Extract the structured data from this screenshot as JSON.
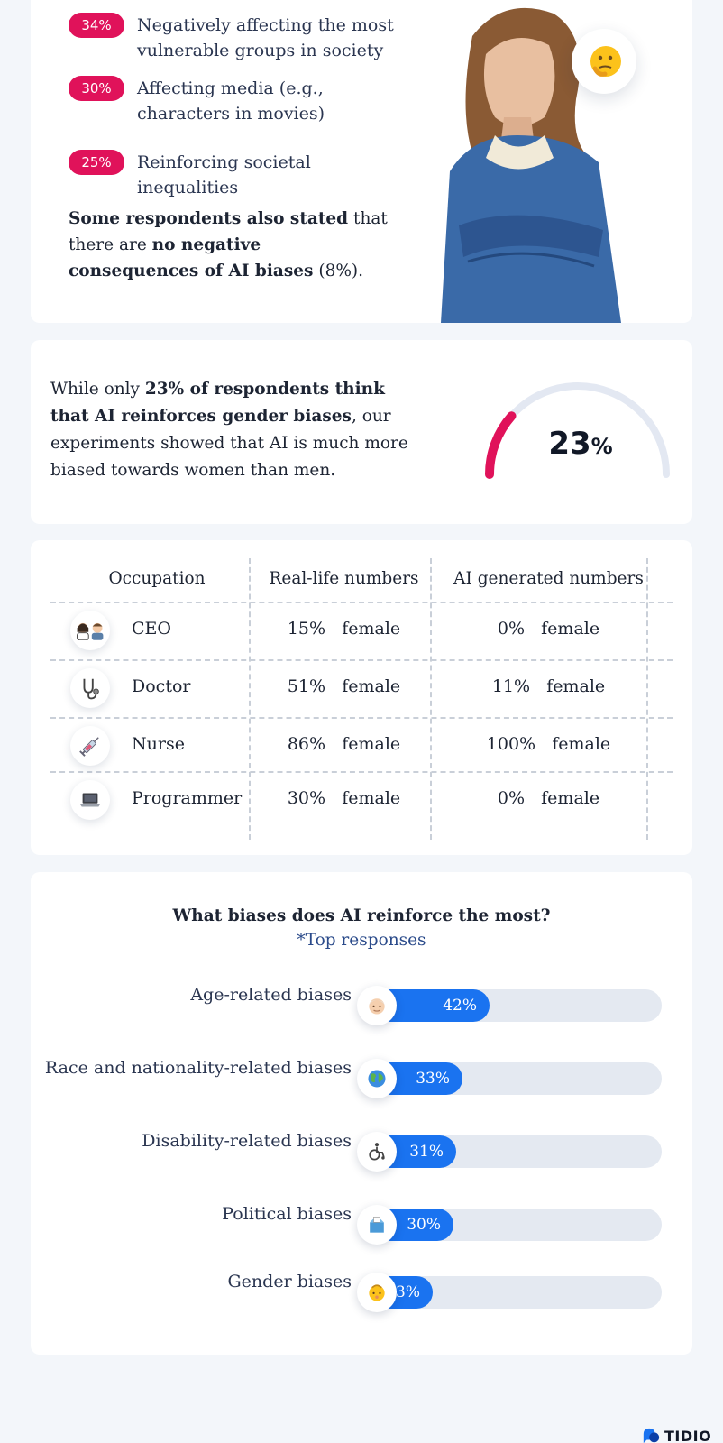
{
  "consequences": {
    "items": [
      {
        "percent": "34%",
        "text": "Negatively affecting the most vulnerable groups in society"
      },
      {
        "percent": "30%",
        "text": "Affecting media (e.g., characters in movies)"
      },
      {
        "percent": "25%",
        "text": "Reinforcing societal inequalities"
      }
    ],
    "note": {
      "part1": "Some respondents also stated",
      "part2": " that there are ",
      "part3": "no negative consequences of AI biases",
      "part4": " (8%)."
    },
    "emoji_icon": "thinking-face-icon"
  },
  "gender_gauge": {
    "text": {
      "part1": "While only ",
      "part2": "23% of respondents think that AI reinforces gender biases",
      "part3": ", our experiments showed that AI is much more biased towards women than men."
    },
    "value": "23",
    "unit": "%",
    "fraction": 0.23,
    "track_color": "#e3e8f2",
    "fill_color": "#e0125a"
  },
  "occupation_table": {
    "headers": [
      "Occupation",
      "Real-life numbers",
      "AI generated numbers"
    ],
    "rows": [
      {
        "icon": "ceo-people-icon",
        "occupation": "CEO",
        "real": "15%   female",
        "ai": "0%   female"
      },
      {
        "icon": "stethoscope-icon",
        "occupation": "Doctor",
        "real": "51%   female",
        "ai": "11%   female"
      },
      {
        "icon": "syringe-icon",
        "occupation": "Nurse",
        "real": "86%   female",
        "ai": "100%   female"
      },
      {
        "icon": "laptop-icon",
        "occupation": "Programmer",
        "real": "30%   female",
        "ai": "0%   female"
      }
    ]
  },
  "chart_data": {
    "type": "bar",
    "title": "What biases does AI reinforce the most?",
    "subtitle": "*Top responses",
    "categories": [
      "Age-related biases",
      "Race and nationality-related biases",
      "Disability-related biases",
      "Political biases",
      "Gender biases"
    ],
    "values": [
      42,
      33,
      31,
      30,
      23
    ],
    "value_labels": [
      "42%",
      "33%",
      "31%",
      "30%",
      "23%"
    ],
    "icons": [
      "old-man-icon",
      "globe-icon",
      "wheelchair-icon",
      "ballot-box-icon",
      "baby-icon"
    ],
    "bar_color": "#1a73f0",
    "track_color": "#e4e9f1",
    "xlim": [
      0,
      100
    ]
  },
  "brand": {
    "name": "TIDIO"
  }
}
